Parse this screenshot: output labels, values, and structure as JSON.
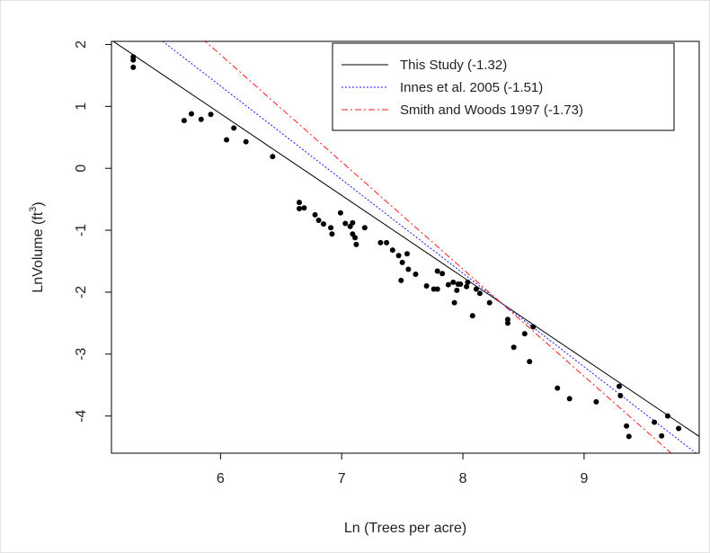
{
  "chart_data": {
    "type": "scatter",
    "xlabel": "Ln (Trees per acre)",
    "ylabel_main": "LnVolume (ft",
    "ylabel_sup": "3",
    "ylabel_close": ")",
    "xlim": [
      5.1,
      9.95
    ],
    "ylim": [
      -4.6,
      2.05
    ],
    "x_ticks": [
      6,
      7,
      8,
      9
    ],
    "y_ticks": [
      2,
      1,
      0,
      -1,
      -2,
      -3,
      -4
    ],
    "grid": false,
    "legend_position": "top-right",
    "points": [
      {
        "x": 5.28,
        "y": 1.8
      },
      {
        "x": 5.28,
        "y": 1.75
      },
      {
        "x": 5.28,
        "y": 1.63
      },
      {
        "x": 5.7,
        "y": 0.77
      },
      {
        "x": 5.76,
        "y": 0.88
      },
      {
        "x": 5.84,
        "y": 0.79
      },
      {
        "x": 5.92,
        "y": 0.87
      },
      {
        "x": 6.05,
        "y": 0.46
      },
      {
        "x": 6.11,
        "y": 0.65
      },
      {
        "x": 6.21,
        "y": 0.43
      },
      {
        "x": 6.43,
        "y": 0.19
      },
      {
        "x": 6.65,
        "y": -0.55
      },
      {
        "x": 6.65,
        "y": -0.65
      },
      {
        "x": 6.69,
        "y": -0.64
      },
      {
        "x": 6.78,
        "y": -0.75
      },
      {
        "x": 6.81,
        "y": -0.84
      },
      {
        "x": 6.85,
        "y": -0.9
      },
      {
        "x": 6.91,
        "y": -0.96
      },
      {
        "x": 6.92,
        "y": -1.06
      },
      {
        "x": 6.99,
        "y": -0.72
      },
      {
        "x": 7.03,
        "y": -0.89
      },
      {
        "x": 7.07,
        "y": -0.94
      },
      {
        "x": 7.09,
        "y": -0.88
      },
      {
        "x": 7.09,
        "y": -1.06
      },
      {
        "x": 7.11,
        "y": -1.12
      },
      {
        "x": 7.12,
        "y": -1.23
      },
      {
        "x": 7.19,
        "y": -0.96
      },
      {
        "x": 7.32,
        "y": -1.2
      },
      {
        "x": 7.37,
        "y": -1.2
      },
      {
        "x": 7.42,
        "y": -1.32
      },
      {
        "x": 7.47,
        "y": -1.41
      },
      {
        "x": 7.5,
        "y": -1.52
      },
      {
        "x": 7.49,
        "y": -1.81
      },
      {
        "x": 7.54,
        "y": -1.38
      },
      {
        "x": 7.55,
        "y": -1.63
      },
      {
        "x": 7.61,
        "y": -1.71
      },
      {
        "x": 7.7,
        "y": -1.9
      },
      {
        "x": 7.76,
        "y": -1.95
      },
      {
        "x": 7.79,
        "y": -1.95
      },
      {
        "x": 7.79,
        "y": -1.66
      },
      {
        "x": 7.83,
        "y": -1.7
      },
      {
        "x": 7.88,
        "y": -1.88
      },
      {
        "x": 7.92,
        "y": -1.84
      },
      {
        "x": 7.93,
        "y": -2.17
      },
      {
        "x": 7.95,
        "y": -1.97
      },
      {
        "x": 7.96,
        "y": -1.87
      },
      {
        "x": 7.98,
        "y": -1.87
      },
      {
        "x": 8.04,
        "y": -1.84
      },
      {
        "x": 8.03,
        "y": -1.91
      },
      {
        "x": 8.08,
        "y": -2.38
      },
      {
        "x": 8.11,
        "y": -1.95
      },
      {
        "x": 8.14,
        "y": -2.02
      },
      {
        "x": 8.22,
        "y": -2.17
      },
      {
        "x": 8.37,
        "y": -2.44
      },
      {
        "x": 8.37,
        "y": -2.5
      },
      {
        "x": 8.42,
        "y": -2.89
      },
      {
        "x": 8.51,
        "y": -2.67
      },
      {
        "x": 8.55,
        "y": -3.12
      },
      {
        "x": 8.58,
        "y": -2.56
      },
      {
        "x": 8.78,
        "y": -3.55
      },
      {
        "x": 8.88,
        "y": -3.72
      },
      {
        "x": 9.1,
        "y": -3.77
      },
      {
        "x": 9.29,
        "y": -3.52
      },
      {
        "x": 9.3,
        "y": -3.67
      },
      {
        "x": 9.35,
        "y": -4.16
      },
      {
        "x": 9.37,
        "y": -4.33
      },
      {
        "x": 9.58,
        "y": -4.1
      },
      {
        "x": 9.64,
        "y": -4.32
      },
      {
        "x": 9.69,
        "y": -4.0
      },
      {
        "x": 9.78,
        "y": -4.2
      }
    ],
    "series": [
      {
        "name": "This Study (-1.32)",
        "x0": 5.1,
        "y0": 2.07,
        "x1": 9.95,
        "y1": -4.33,
        "color": "#000000",
        "dash": "none"
      },
      {
        "name": "Innes et al. 2005 (-1.51)",
        "x0": 5.1,
        "y0": 2.69,
        "x1": 9.95,
        "y1": -4.64,
        "color": "#1a1aff",
        "dash": "2,2"
      },
      {
        "name": "Smith and Woods 1997 (-1.73)",
        "x0": 5.1,
        "y0": 3.39,
        "x1": 9.95,
        "y1": -5.0,
        "color": "#ff1a1a",
        "dash": "7,3,2,3"
      }
    ]
  }
}
